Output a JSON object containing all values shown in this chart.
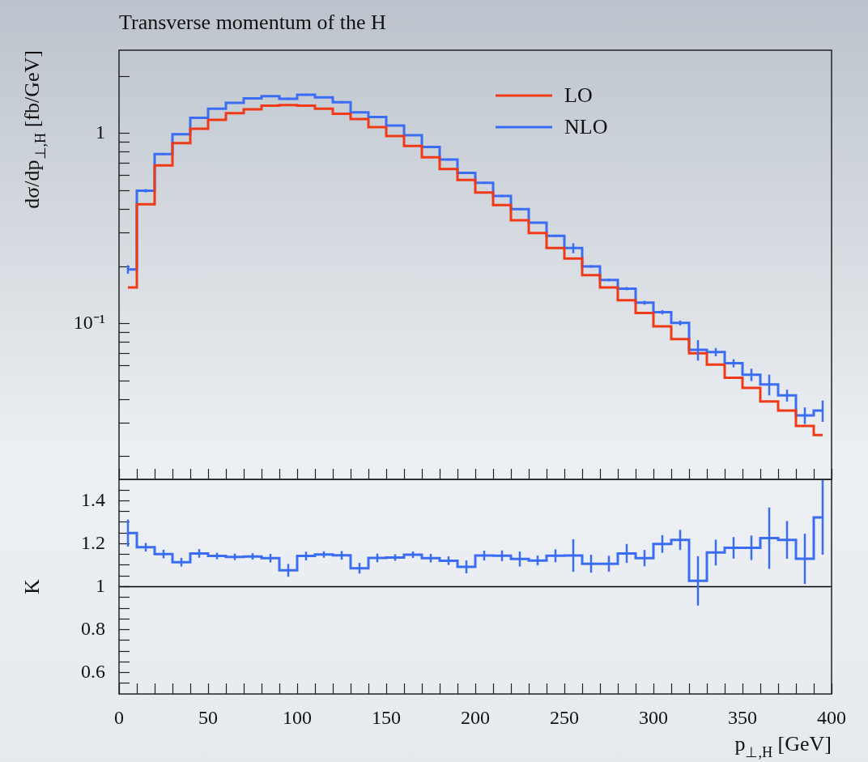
{
  "chart_data": [
    {
      "type": "step",
      "title": "Transverse momentum of the H",
      "ylabel": "dσ/dp$_{⊥,H}$ [fb/GeV]",
      "log": "y",
      "legend": "top right",
      "tick_labels": "y",
      "x": [
        5,
        15,
        25,
        35,
        45,
        55,
        65,
        75,
        85,
        95,
        105,
        115,
        125,
        135,
        145,
        155,
        165,
        175,
        185,
        195,
        205,
        215,
        225,
        235,
        245,
        255,
        265,
        275,
        285,
        295,
        305,
        315,
        325,
        335,
        345,
        355,
        365,
        375,
        385,
        395
      ],
      "xlim": [
        0,
        400
      ],
      "xticks": [
        0,
        {
          "value": 10,
          "label": null
        },
        {
          "value": 20,
          "label": null
        },
        {
          "value": 30,
          "label": null
        },
        {
          "value": 40,
          "label": null
        },
        50,
        {
          "value": 60,
          "label": null
        },
        {
          "value": 70,
          "label": null
        },
        {
          "value": 80,
          "label": null
        },
        {
          "value": 90,
          "label": null
        },
        100,
        {
          "value": 110,
          "label": null
        },
        {
          "value": 120,
          "label": null
        },
        {
          "value": 130,
          "label": null
        },
        {
          "value": 140,
          "label": null
        },
        150,
        {
          "value": 160,
          "label": null
        },
        {
          "value": 170,
          "label": null
        },
        {
          "value": 180,
          "label": null
        },
        {
          "value": 190,
          "label": null
        },
        200,
        {
          "value": 210,
          "label": null
        },
        {
          "value": 220,
          "label": null
        },
        {
          "value": 230,
          "label": null
        },
        {
          "value": 240,
          "label": null
        },
        250,
        {
          "value": 260,
          "label": null
        },
        {
          "value": 270,
          "label": null
        },
        {
          "value": 280,
          "label": null
        },
        {
          "value": 290,
          "label": null
        },
        300,
        {
          "value": 310,
          "label": null
        },
        {
          "value": 320,
          "label": null
        },
        {
          "value": 330,
          "label": null
        },
        {
          "value": 340,
          "label": null
        },
        350,
        {
          "value": 360,
          "label": null
        },
        {
          "value": 370,
          "label": null
        },
        {
          "value": 380,
          "label": null
        },
        {
          "value": 390,
          "label": null
        },
        400
      ],
      "ylim": [
        0.0152,
        2.74
      ],
      "yticks": [
        {
          "value": 0.02,
          "label": null
        },
        {
          "value": 0.03,
          "label": null
        },
        {
          "value": 0.04,
          "label": null
        },
        {
          "value": 0.05,
          "label": null
        },
        {
          "value": 0.06,
          "label": null
        },
        {
          "value": 0.07,
          "label": null
        },
        {
          "value": 0.08,
          "label": null
        },
        {
          "value": 0.09,
          "label": null
        },
        {
          "value": 0.1,
          "label": "10⁻¹"
        },
        {
          "value": 0.2,
          "label": null
        },
        {
          "value": 0.3,
          "label": null
        },
        {
          "value": 0.4,
          "label": null
        },
        {
          "value": 0.5,
          "label": null
        },
        {
          "value": 0.6,
          "label": null
        },
        {
          "value": 0.7,
          "label": null
        },
        {
          "value": 0.8,
          "label": null
        },
        {
          "value": 0.9,
          "label": null
        },
        1,
        {
          "value": 2,
          "label": null
        }
      ],
      "series": [
        {
          "name": "LO",
          "color": "#f03a17",
          "values": [
            0.155,
            0.425,
            0.68,
            0.89,
            1.06,
            1.18,
            1.28,
            1.34,
            1.4,
            1.41,
            1.4,
            1.35,
            1.27,
            1.19,
            1.08,
            0.97,
            0.86,
            0.75,
            0.65,
            0.57,
            0.49,
            0.42,
            0.35,
            0.3,
            0.25,
            0.22,
            0.18,
            0.155,
            0.133,
            0.114,
            0.097,
            0.083,
            0.07,
            0.061,
            0.052,
            0.046,
            0.039,
            0.035,
            0.029,
            0.026
          ]
        },
        {
          "name": "NLO",
          "color": "#3a6cf4",
          "values": [
            0.193,
            0.5,
            0.78,
            0.99,
            1.21,
            1.35,
            1.45,
            1.53,
            1.57,
            1.52,
            1.6,
            1.55,
            1.46,
            1.29,
            1.22,
            1.1,
            0.98,
            0.85,
            0.73,
            0.62,
            0.55,
            0.47,
            0.4,
            0.34,
            0.29,
            0.25,
            0.2,
            0.17,
            0.153,
            0.129,
            0.115,
            0.101,
            0.073,
            0.071,
            0.062,
            0.054,
            0.048,
            0.042,
            0.033,
            0.035
          ],
          "errors": [
            0.01,
            0.01,
            0.01,
            0.01,
            0.015,
            0.015,
            0.015,
            0.02,
            0.02,
            0.02,
            0.02,
            0.02,
            0.02,
            0.015,
            0.015,
            0.01,
            0.01,
            0.01,
            0.01,
            0.008,
            0.007,
            0.006,
            0.005,
            0.004,
            0.004,
            0.015,
            0.003,
            0.003,
            0.003,
            0.003,
            0.003,
            0.003,
            0.009,
            0.0035,
            0.003,
            0.004,
            0.006,
            0.003,
            0.0033,
            0.0045
          ]
        }
      ]
    },
    {
      "type": "step",
      "xlabel": "p$_{⊥,H}$ [GeV]",
      "ylabel": "K",
      "x": [
        5,
        15,
        25,
        35,
        45,
        55,
        65,
        75,
        85,
        95,
        105,
        115,
        125,
        135,
        145,
        155,
        165,
        175,
        185,
        195,
        205,
        215,
        225,
        235,
        245,
        255,
        265,
        275,
        285,
        295,
        305,
        315,
        325,
        335,
        345,
        355,
        365,
        375,
        385,
        395
      ],
      "xlim": [
        0,
        400
      ],
      "xticks": [
        0,
        {
          "value": 10,
          "label": null
        },
        {
          "value": 20,
          "label": null
        },
        {
          "value": 30,
          "label": null
        },
        {
          "value": 40,
          "label": null
        },
        50,
        {
          "value": 60,
          "label": null
        },
        {
          "value": 70,
          "label": null
        },
        {
          "value": 80,
          "label": null
        },
        {
          "value": 90,
          "label": null
        },
        100,
        {
          "value": 110,
          "label": null
        },
        {
          "value": 120,
          "label": null
        },
        {
          "value": 130,
          "label": null
        },
        {
          "value": 140,
          "label": null
        },
        150,
        {
          "value": 160,
          "label": null
        },
        {
          "value": 170,
          "label": null
        },
        {
          "value": 180,
          "label": null
        },
        {
          "value": 190,
          "label": null
        },
        200,
        {
          "value": 210,
          "label": null
        },
        {
          "value": 220,
          "label": null
        },
        {
          "value": 230,
          "label": null
        },
        {
          "value": 240,
          "label": null
        },
        250,
        {
          "value": 260,
          "label": null
        },
        {
          "value": 270,
          "label": null
        },
        {
          "value": 280,
          "label": null
        },
        {
          "value": 290,
          "label": null
        },
        300,
        {
          "value": 310,
          "label": null
        },
        {
          "value": 320,
          "label": null
        },
        {
          "value": 330,
          "label": null
        },
        {
          "value": 340,
          "label": null
        },
        350,
        {
          "value": 360,
          "label": null
        },
        {
          "value": 370,
          "label": null
        },
        {
          "value": 380,
          "label": null
        },
        {
          "value": 390,
          "label": null
        },
        400
      ],
      "ylim": [
        0.5,
        1.5
      ],
      "yticks": [
        {
          "value": 0.55,
          "label": null
        },
        0.6,
        {
          "value": 0.65,
          "label": null
        },
        {
          "value": 0.7,
          "label": null
        },
        {
          "value": 0.75,
          "label": null
        },
        0.8,
        {
          "value": 0.85,
          "label": null
        },
        {
          "value": 0.9,
          "label": null
        },
        {
          "value": 0.95,
          "label": null
        },
        1,
        {
          "value": 1.05,
          "label": null
        },
        {
          "value": 1.1,
          "label": null
        },
        {
          "value": 1.15,
          "label": null
        },
        1.2,
        {
          "value": 1.25,
          "label": null
        },
        {
          "value": 1.3,
          "label": null
        },
        {
          "value": 1.35,
          "label": null
        },
        1.4,
        {
          "value": 1.45,
          "label": null
        }
      ],
      "ref_lines": [
        {
          "axis": "y",
          "value": 1,
          "color": "#000000"
        }
      ],
      "series": [
        {
          "color": "#3a6cf4",
          "values": [
            1.25,
            1.184,
            1.152,
            1.114,
            1.155,
            1.143,
            1.139,
            1.141,
            1.133,
            1.076,
            1.143,
            1.15,
            1.146,
            1.086,
            1.134,
            1.136,
            1.149,
            1.133,
            1.121,
            1.092,
            1.145,
            1.144,
            1.129,
            1.122,
            1.144,
            1.145,
            1.107,
            1.107,
            1.155,
            1.133,
            1.199,
            1.218,
            1.027,
            1.159,
            1.181,
            1.181,
            1.226,
            1.218,
            1.13,
            1.323
          ],
          "errors": [
            0.063,
            0.02,
            0.02,
            0.02,
            0.02,
            0.015,
            0.015,
            0.015,
            0.02,
            0.03,
            0.02,
            0.015,
            0.02,
            0.025,
            0.02,
            0.015,
            0.015,
            0.02,
            0.02,
            0.03,
            0.023,
            0.025,
            0.035,
            0.023,
            0.03,
            0.076,
            0.042,
            0.037,
            0.044,
            0.038,
            0.041,
            0.047,
            0.115,
            0.06,
            0.05,
            0.057,
            0.143,
            0.088,
            0.117,
            0.174
          ]
        }
      ]
    }
  ]
}
